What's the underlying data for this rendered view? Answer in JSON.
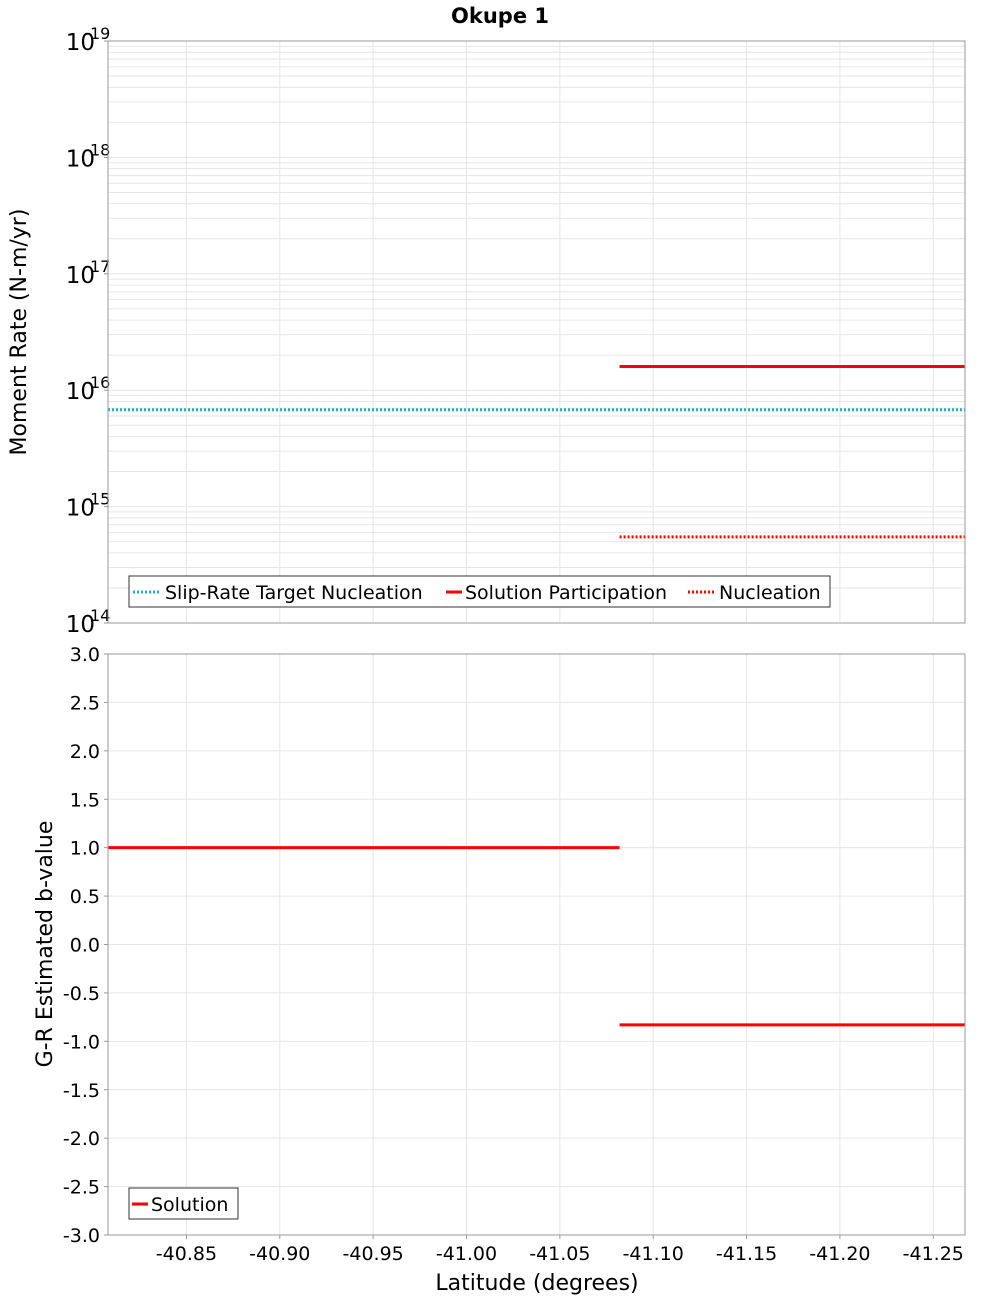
{
  "title": "Okupe 1",
  "xlabel": "Latitude (degrees)",
  "x_ticks": [
    "-40.85",
    "-40.90",
    "-40.95",
    "-41.00",
    "-41.05",
    "-41.10",
    "-41.15",
    "-41.20",
    "-41.25"
  ],
  "colors": {
    "cyan": "#1fb5b5",
    "red": "#ff0000",
    "frame": "#999999",
    "grid": "#e6e6e6"
  },
  "chart_data": [
    {
      "type": "line",
      "title": "Okupe 1",
      "xlabel": "Latitude (degrees)",
      "ylabel": "Moment Rate (N-m/yr)",
      "yscale": "log",
      "xlim": [
        -40.808,
        -41.267
      ],
      "ylim": [
        100000000000000.0,
        1e+19
      ],
      "y_tick_bases": [
        "10",
        "10",
        "10",
        "10",
        "10",
        "10"
      ],
      "y_tick_exponents": [
        "14",
        "15",
        "16",
        "17",
        "18",
        "19"
      ],
      "series": [
        {
          "name": "Slip-Rate Target Nucleation",
          "style": "dotted",
          "color": "#1fb5b5",
          "segments": [
            {
              "x": [
                -40.808,
                -41.267
              ],
              "y": [
                6800000000000000.0,
                6800000000000000.0
              ]
            }
          ]
        },
        {
          "name": "Solution Participation",
          "style": "solid",
          "color": "#ff0000",
          "segments": [
            {
              "x": [
                -41.082,
                -41.267
              ],
              "y": [
                1.6e+16,
                1.6e+16
              ]
            }
          ]
        },
        {
          "name": "Nucleation",
          "style": "dotted",
          "color": "#ff0000",
          "segments": [
            {
              "x": [
                -41.082,
                -41.267
              ],
              "y": [
                550000000000000.0,
                550000000000000.0
              ]
            }
          ]
        }
      ],
      "legend": [
        "Slip-Rate Target Nucleation",
        "Solution Participation",
        "Nucleation"
      ],
      "legend_position": "bottom-left"
    },
    {
      "type": "line",
      "xlabel": "Latitude (degrees)",
      "ylabel": "G-R Estimated b-value",
      "yscale": "linear",
      "xlim": [
        -40.808,
        -41.267
      ],
      "ylim": [
        -3.0,
        3.0
      ],
      "y_ticks": [
        "3.0",
        "2.5",
        "2.0",
        "1.5",
        "1.0",
        "0.5",
        "0.0",
        "-0.5",
        "-1.0",
        "-1.5",
        "-2.0",
        "-2.5",
        "-3.0"
      ],
      "series": [
        {
          "name": "Solution",
          "style": "solid",
          "color": "#ff0000",
          "segments": [
            {
              "x": [
                -40.808,
                -41.082
              ],
              "y": [
                1.0,
                1.0
              ]
            },
            {
              "x": [
                -41.082,
                -41.267
              ],
              "y": [
                -0.83,
                -0.83
              ]
            }
          ]
        }
      ],
      "legend": [
        "Solution"
      ],
      "legend_position": "bottom-left"
    }
  ]
}
